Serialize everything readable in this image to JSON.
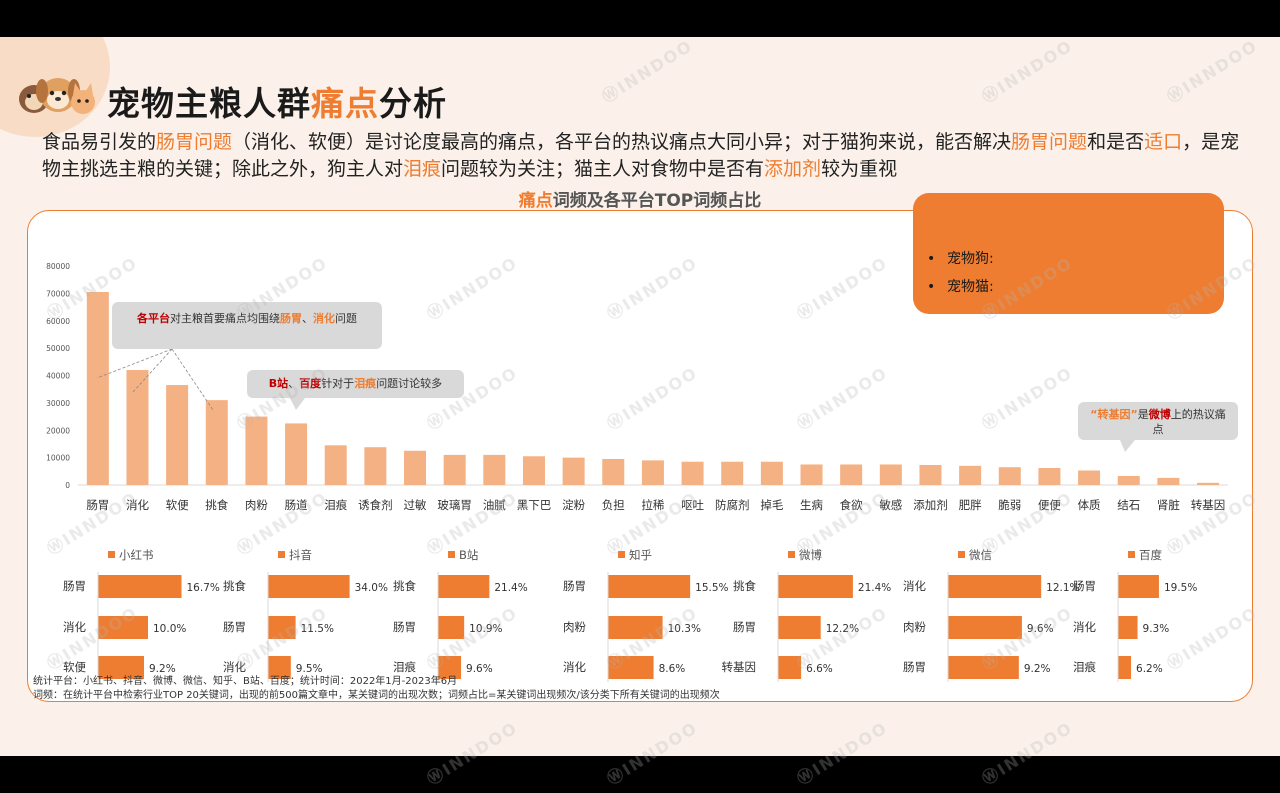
{
  "slide": {
    "title_a": "宠物主粮人群",
    "title_b": "痛点",
    "title_c": "分析",
    "subtitle": [
      {
        "t": "食品易引发的",
        "o": false
      },
      {
        "t": "肠胃问题",
        "o": true
      },
      {
        "t": "（消化、软便）是讨论度最高的痛点，各平台的热议痛点大同小异；对于猫狗来说，能否解决",
        "o": false
      },
      {
        "t": "肠胃问题",
        "o": true
      },
      {
        "t": "和是否",
        "o": false
      },
      {
        "t": "适口",
        "o": true
      },
      {
        "t": "，是宠物主挑选主粮的关键；除此之外，狗主人对",
        "o": false
      },
      {
        "t": "泪痕",
        "o": true
      },
      {
        "t": "问题较为关注；猫主人对食物中是否有",
        "o": false
      },
      {
        "t": "添加剂",
        "o": true
      },
      {
        "t": "较为重视",
        "o": false
      }
    ],
    "chart_title_a": "痛点",
    "chart_title_b": "词频及各平台TOP词频占比",
    "note_items": [
      "宠物狗:",
      "宠物猫:"
    ],
    "watermark": "INNDOO",
    "footnote_1": "统计平台：小红书、抖音、微博、微信、知乎、B站、百度；统计时间：2022年1月-2023年6月",
    "footnote_2": "词频：在统计平台中检索行业TOP 20关键词，出现的前500篇文章中，某关键词的出现次数；词频占比=某关键词出现频次/该分类下所有关键词的出现频次"
  },
  "callouts": {
    "c1": [
      {
        "t": "各平台",
        "s": "r"
      },
      {
        "t": "对主粮首要痛点均围绕",
        "s": ""
      },
      {
        "t": "肠胃",
        "s": "o"
      },
      {
        "t": "、",
        "s": ""
      },
      {
        "t": "消化",
        "s": "o"
      },
      {
        "t": "问题",
        "s": ""
      }
    ],
    "c2": [
      {
        "t": "B站",
        "s": "r"
      },
      {
        "t": "、",
        "s": ""
      },
      {
        "t": "百度",
        "s": "r"
      },
      {
        "t": "针对于",
        "s": ""
      },
      {
        "t": "泪痕",
        "s": "o"
      },
      {
        "t": "问题讨论较多",
        "s": ""
      }
    ],
    "c3": [
      {
        "t": "“转基因”",
        "s": "o"
      },
      {
        "t": "是",
        "s": ""
      },
      {
        "t": "微博",
        "s": "r"
      },
      {
        "t": "上的热议痛点",
        "s": ""
      }
    ]
  },
  "colors": {
    "accent": "#ee7d31",
    "bar_light": "#f4b183",
    "callout_bg": "#d9d9d9",
    "red": "#c00000"
  },
  "chart_data": [
    {
      "type": "bar",
      "title": "痛点词频及各平台TOP词频占比",
      "categories": [
        "肠胃",
        "消化",
        "软便",
        "挑食",
        "肉粉",
        "肠道",
        "泪痕",
        "诱食剂",
        "过敏",
        "玻璃胃",
        "油腻",
        "黑下巴",
        "淀粉",
        "负担",
        "拉稀",
        "呕吐",
        "防腐剂",
        "掉毛",
        "生病",
        "食欲",
        "敏感",
        "添加剂",
        "肥胖",
        "脆弱",
        "便便",
        "体质",
        "结石",
        "肾脏",
        "转基因"
      ],
      "values": [
        70500,
        42000,
        36500,
        31000,
        25000,
        22500,
        14500,
        13800,
        12500,
        11000,
        11000,
        10500,
        10000,
        9500,
        9000,
        8500,
        8500,
        8500,
        7500,
        7500,
        7500,
        7300,
        7000,
        6500,
        6200,
        5300,
        3300,
        2600,
        800
      ],
      "yticks": [
        0,
        10000,
        20000,
        30000,
        40000,
        50000,
        60000,
        70000,
        80000
      ],
      "ylim": [
        0,
        80000
      ]
    },
    {
      "type": "bar",
      "orientation": "horizontal",
      "legend": "小红书",
      "categories": [
        "肠胃",
        "消化",
        "软便"
      ],
      "values": [
        16.7,
        10.0,
        9.2
      ],
      "labels": [
        "16.7%",
        "10.0%",
        "9.2%"
      ]
    },
    {
      "type": "bar",
      "orientation": "horizontal",
      "legend": "抖音",
      "categories": [
        "挑食",
        "肠胃",
        "消化"
      ],
      "values": [
        34.0,
        11.5,
        9.5
      ],
      "labels": [
        "34.0%",
        "11.5%",
        "9.5%"
      ]
    },
    {
      "type": "bar",
      "orientation": "horizontal",
      "legend": "B站",
      "categories": [
        "挑食",
        "肠胃",
        "泪痕"
      ],
      "values": [
        21.4,
        10.9,
        9.6
      ],
      "labels": [
        "21.4%",
        "10.9%",
        "9.6%"
      ]
    },
    {
      "type": "bar",
      "orientation": "horizontal",
      "legend": "知乎",
      "categories": [
        "肠胃",
        "肉粉",
        "消化"
      ],
      "values": [
        15.5,
        10.3,
        8.6
      ],
      "labels": [
        "15.5%",
        "10.3%",
        "8.6%"
      ]
    },
    {
      "type": "bar",
      "orientation": "horizontal",
      "legend": "微博",
      "categories": [
        "挑食",
        "肠胃",
        "转基因"
      ],
      "values": [
        21.4,
        12.2,
        6.6
      ],
      "labels": [
        "21.4%",
        "12.2%",
        "6.6%"
      ]
    },
    {
      "type": "bar",
      "orientation": "horizontal",
      "legend": "微信",
      "categories": [
        "消化",
        "肉粉",
        "肠胃"
      ],
      "values": [
        12.1,
        9.6,
        9.2
      ],
      "labels": [
        "12.1%",
        "9.6%",
        "9.2%"
      ]
    },
    {
      "type": "bar",
      "orientation": "horizontal",
      "legend": "百度",
      "categories": [
        "肠胃",
        "消化",
        "泪痕"
      ],
      "values": [
        19.5,
        9.3,
        6.2
      ],
      "labels": [
        "19.5%",
        "9.3%",
        "6.2%"
      ]
    }
  ]
}
